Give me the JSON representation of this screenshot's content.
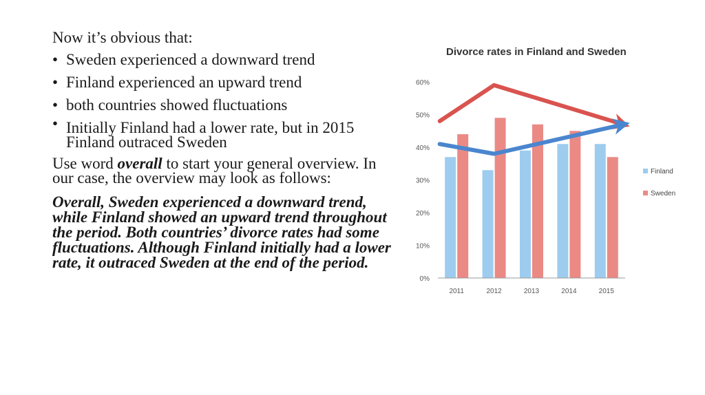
{
  "slide": {
    "intro": "Now it’s obvious that:",
    "bullets": [
      "Sweden experienced a downward trend",
      "Finland experienced an upward trend",
      "both countries showed fluctuations",
      "Initially Finland had a lower rate, but in 2015 Finland outraced Sweden"
    ],
    "instruction_pre": "Use word ",
    "instruction_keyword": "overall",
    "instruction_post": " to start your general overview. In our case, the overview may look as follows:",
    "overview": "Overall, Sweden experienced a downward trend, while Finland showed an upward trend throughout the period. Both countries’ divorce rates had some fluctuations. Although Finland initially had a lower rate, it outraced Sweden at the end of the period."
  },
  "colors": {
    "finland": "#9DCCEF",
    "sweden": "#EB8A85",
    "trend_red": "#D9534F",
    "trend_blue": "#4A86CF",
    "axis": "#999999"
  },
  "chart_data": {
    "type": "bar",
    "title": "Divorce rates in Finland and Sweden",
    "categories": [
      "2011",
      "2012",
      "2013",
      "2014",
      "2015"
    ],
    "series": [
      {
        "name": "Finland",
        "values": [
          37,
          33,
          39,
          41,
          41
        ]
      },
      {
        "name": "Sweden",
        "values": [
          44,
          49,
          47,
          45,
          37
        ]
      }
    ],
    "yticks": [
      "0%",
      "10%",
      "20%",
      "30%",
      "40%",
      "50%",
      "60%"
    ],
    "ylim": [
      0,
      60
    ],
    "grid": false,
    "legend": "right",
    "annotations": [
      {
        "kind": "trend-arrow",
        "series": "Sweden",
        "points": [
          [
            2011,
            48
          ],
          [
            2012,
            59
          ],
          [
            2015,
            47
          ]
        ]
      },
      {
        "kind": "trend-arrow",
        "series": "Finland",
        "points": [
          [
            2011,
            41
          ],
          [
            2012,
            38
          ],
          [
            2015,
            47
          ]
        ]
      }
    ]
  }
}
